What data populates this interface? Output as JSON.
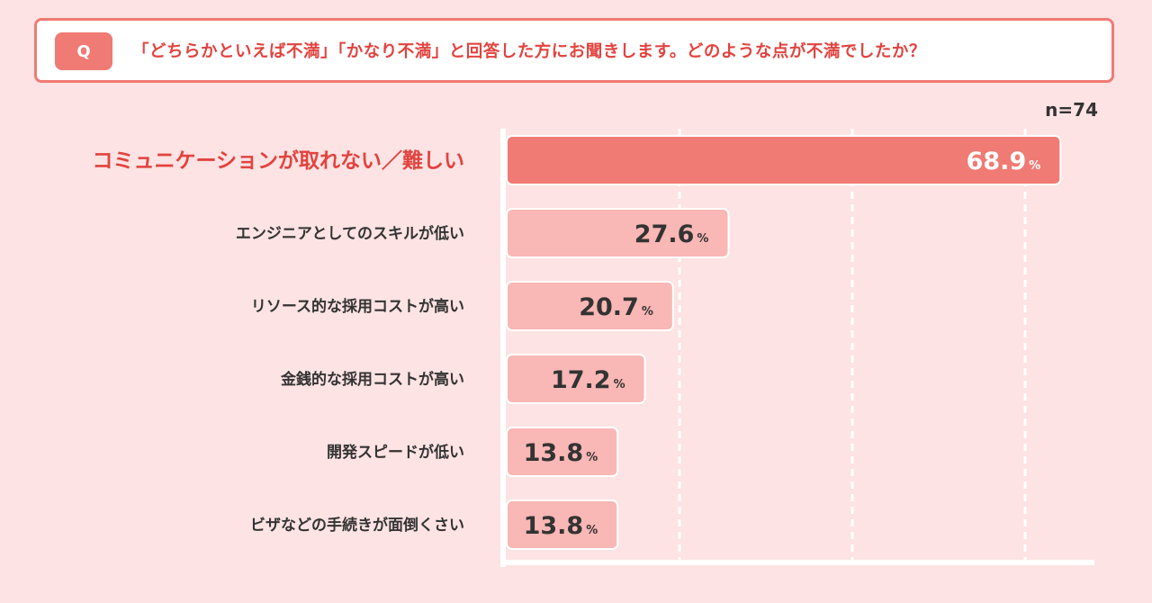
{
  "question": {
    "badge": "Q",
    "text": "「どちらかといえば不満」「かなり不満」と回答した方にお聞きします。どのような点が不満でしたか？"
  },
  "n_label": "n=74",
  "colors": {
    "accent": "#f07a74",
    "highlight_text": "#e2433f",
    "bar_primary": "#f07a74",
    "bar_secondary": "#f9b7b5",
    "background": "#fde3e3",
    "text_dark": "#333333"
  },
  "chart_data": {
    "type": "bar",
    "orientation": "horizontal",
    "title": "「どちらかといえば不満」「かなり不満」と回答した方にお聞きします。どのような点が不満でしたか？",
    "categories": [
      "コミュニケーションが取れない／難しい",
      "エンジニアとしてのスキルが低い",
      "リソース的な採用コストが高い",
      "金銭的な採用コストが高い",
      "開発スピードが低い",
      "ビザなどの手続きが面倒くさい"
    ],
    "values": [
      68.9,
      27.6,
      20.7,
      17.2,
      13.8,
      13.8
    ],
    "value_labels": [
      "68.9",
      "27.6",
      "20.7",
      "17.2",
      "13.8",
      "13.8"
    ],
    "unit": "%",
    "xlim": [
      0,
      72
    ],
    "gridlines": [
      21.5,
      43,
      64.5
    ],
    "highlight_index": 0,
    "n": 74
  }
}
